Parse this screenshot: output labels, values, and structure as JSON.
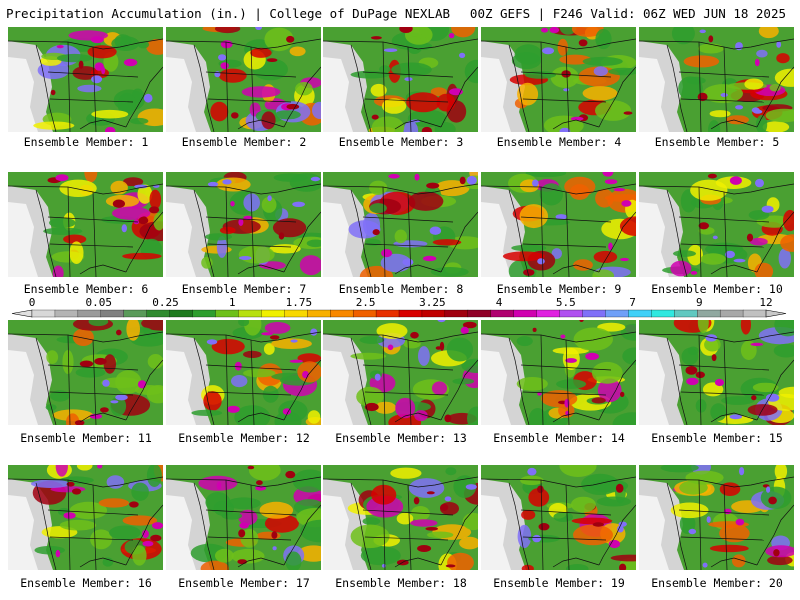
{
  "header": {
    "left": "Precipitation Accumulation (in.) | College of DuPage NEXLAB",
    "right": "00Z GEFS | F246 Valid: 06Z WED JUN 18 2025"
  },
  "members": [
    {
      "label": "Ensemble Member: 1"
    },
    {
      "label": "Ensemble Member: 2"
    },
    {
      "label": "Ensemble Member: 3"
    },
    {
      "label": "Ensemble Member: 4"
    },
    {
      "label": "Ensemble Member: 5"
    },
    {
      "label": "Ensemble Member: 6"
    },
    {
      "label": "Ensemble Member: 7"
    },
    {
      "label": "Ensemble Member: 8"
    },
    {
      "label": "Ensemble Member: 9"
    },
    {
      "label": "Ensemble Member: 10"
    },
    {
      "label": "Ensemble Member: 11"
    },
    {
      "label": "Ensemble Member: 12"
    },
    {
      "label": "Ensemble Member: 13"
    },
    {
      "label": "Ensemble Member: 14"
    },
    {
      "label": "Ensemble Member: 15"
    },
    {
      "label": "Ensemble Member: 16"
    },
    {
      "label": "Ensemble Member: 17"
    },
    {
      "label": "Ensemble Member: 18"
    },
    {
      "label": "Ensemble Member: 19"
    },
    {
      "label": "Ensemble Member: 20"
    }
  ],
  "colorbar": {
    "ticks": [
      "0",
      "0.05",
      "0.25",
      "1",
      "1.75",
      "2.5",
      "3.25",
      "4",
      "5.5",
      "7",
      "9",
      "12"
    ],
    "colors": [
      "#d8d8d8",
      "#b4b4b4",
      "#9a9a9a",
      "#808080",
      "#5a9a5a",
      "#2f8a2f",
      "#1e7a1e",
      "#2e9e2e",
      "#6ec01a",
      "#b8e010",
      "#f0f000",
      "#f8d800",
      "#f8b000",
      "#f88800",
      "#f06000",
      "#e83000",
      "#d80000",
      "#c00000",
      "#a00010",
      "#900028",
      "#b00070",
      "#d000b0",
      "#e020e0",
      "#b050f0",
      "#8070f8",
      "#70a0f8",
      "#40d0f8",
      "#30e8e0",
      "#60c8c0",
      "#90a8a0",
      "#a8a8a8",
      "#c0c0c0"
    ]
  }
}
